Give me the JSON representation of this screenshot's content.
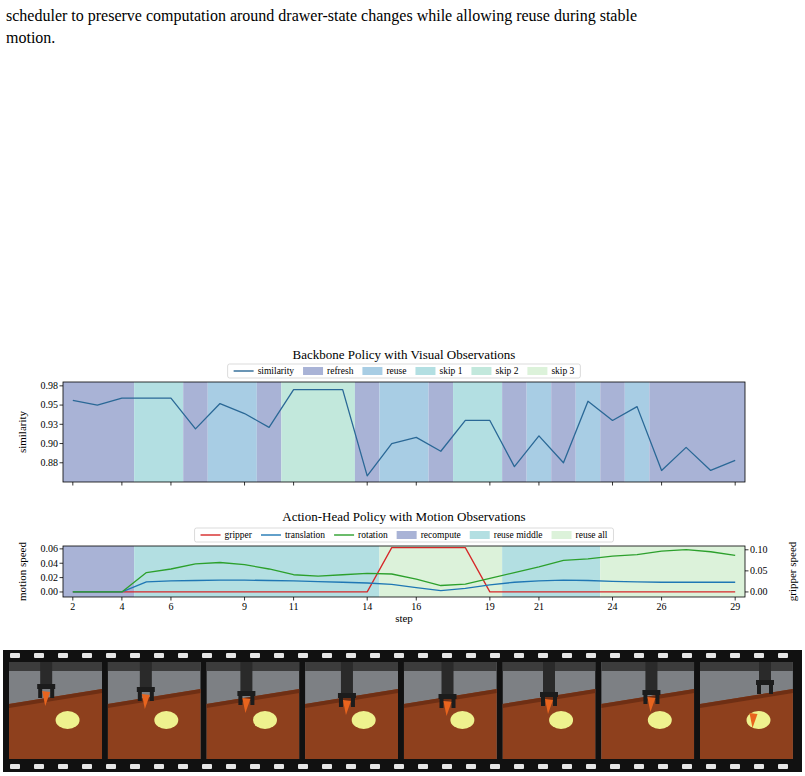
{
  "caption_lines": [
    "scheduler to preserve computation around drawer-state changes while allowing reuse during stable",
    "motion."
  ],
  "chart_data": [
    {
      "type": "line",
      "title": "Backbone Policy with Visual Observations",
      "ylabel": "similarity",
      "x": [
        2,
        3,
        4,
        5,
        6,
        7,
        8,
        9,
        10,
        11,
        12,
        13,
        14,
        15,
        16,
        17,
        18,
        19,
        20,
        21,
        22,
        23,
        24,
        25,
        26,
        27,
        28,
        29
      ],
      "series": [
        {
          "name": "similarity",
          "color": "#2a6896",
          "values": [
            0.956,
            0.95,
            0.959,
            0.959,
            0.959,
            0.919,
            0.952,
            0.939,
            0.921,
            0.97,
            0.97,
            0.97,
            0.858,
            0.9,
            0.908,
            0.89,
            0.93,
            0.93,
            0.87,
            0.91,
            0.875,
            0.955,
            0.93,
            0.948,
            0.865,
            0.895,
            0.865,
            0.878
          ]
        }
      ],
      "region_types": [
        {
          "name": "refresh",
          "color": "#a9b3d6"
        },
        {
          "name": "reuse",
          "color": "#a8cde4"
        },
        {
          "name": "skip 1",
          "color": "#b3dfe2"
        },
        {
          "name": "skip 2",
          "color": "#c2e8dc"
        },
        {
          "name": "skip 3",
          "color": "#dcf2da"
        }
      ],
      "regions": [
        {
          "label": "refresh",
          "start": 1.6,
          "end": 4.5
        },
        {
          "label": "skip 1",
          "start": 4.5,
          "end": 6.5
        },
        {
          "label": "refresh",
          "start": 6.5,
          "end": 7.5
        },
        {
          "label": "reuse",
          "start": 7.5,
          "end": 9.5
        },
        {
          "label": "refresh",
          "start": 9.5,
          "end": 10.5
        },
        {
          "label": "skip 2",
          "start": 10.5,
          "end": 13.5
        },
        {
          "label": "refresh",
          "start": 13.5,
          "end": 14.5
        },
        {
          "label": "reuse",
          "start": 14.5,
          "end": 16.5
        },
        {
          "label": "refresh",
          "start": 16.5,
          "end": 17.5
        },
        {
          "label": "skip 1",
          "start": 17.5,
          "end": 19.5
        },
        {
          "label": "refresh",
          "start": 19.5,
          "end": 20.5
        },
        {
          "label": "reuse",
          "start": 20.5,
          "end": 21.5
        },
        {
          "label": "refresh",
          "start": 21.5,
          "end": 22.5
        },
        {
          "label": "reuse",
          "start": 22.5,
          "end": 23.5
        },
        {
          "label": "refresh",
          "start": 23.5,
          "end": 24.5
        },
        {
          "label": "reuse",
          "start": 24.5,
          "end": 25.5
        },
        {
          "label": "refresh",
          "start": 25.5,
          "end": 29.4
        }
      ],
      "xlim": [
        1.6,
        29.4
      ],
      "xticks": [
        2,
        4,
        6,
        9,
        11,
        14,
        16,
        19,
        21,
        24,
        26,
        29
      ],
      "ylim": [
        0.85,
        0.98
      ],
      "yticks": [
        {
          "value": 0.875,
          "label": "0.88"
        },
        {
          "value": 0.9,
          "label": "0.90"
        },
        {
          "value": 0.925,
          "label": "0.93"
        },
        0.95,
        {
          "value": 0.975,
          "label": "0.98"
        }
      ],
      "tick_labels": "y",
      "grid": false,
      "legend": "top"
    },
    {
      "type": "line",
      "title": "Action-Head Policy with Motion Observations",
      "xlabel": "step",
      "ylabel": "motion speed",
      "y2label": "gripper speed",
      "x": [
        2,
        3,
        4,
        5,
        6,
        7,
        8,
        9,
        10,
        11,
        12,
        13,
        14,
        15,
        16,
        17,
        18,
        19,
        20,
        21,
        22,
        23,
        24,
        25,
        26,
        27,
        28,
        29
      ],
      "series": [
        {
          "name": "gripper",
          "color": "#d62728",
          "axis": "y2",
          "values": [
            0,
            0,
            0,
            0,
            0,
            0,
            0,
            0,
            0,
            0,
            0,
            0,
            0,
            0.105,
            0.105,
            0.105,
            0.105,
            0,
            0,
            0,
            0,
            0,
            0,
            0,
            0,
            0,
            0,
            0
          ]
        },
        {
          "name": "translation",
          "color": "#1f77b4",
          "values": [
            0,
            0,
            0,
            0.014,
            0.0155,
            0.016,
            0.0165,
            0.0165,
            0.016,
            0.0155,
            0.0145,
            0.0135,
            0.0125,
            0.0105,
            0.006,
            0.002,
            0.005,
            0.01,
            0.0135,
            0.0155,
            0.0165,
            0.016,
            0.0148,
            0.014,
            0.0135,
            0.0135,
            0.0135,
            0.0135
          ]
        },
        {
          "name": "rotation",
          "color": "#2ca02c",
          "values": [
            0,
            0,
            0,
            0.027,
            0.032,
            0.039,
            0.041,
            0.038,
            0.032,
            0.024,
            0.022,
            0.024,
            0.026,
            0.025,
            0.018,
            0.009,
            0.011,
            0.019,
            0.027,
            0.035,
            0.044,
            0.046,
            0.05,
            0.052,
            0.057,
            0.059,
            0.056,
            0.051
          ]
        }
      ],
      "region_types": [
        {
          "name": "recompute",
          "color": "#a9b3d6"
        },
        {
          "name": "reuse middle",
          "color": "#b3dfe2"
        },
        {
          "name": "reuse all",
          "color": "#dcf2da"
        }
      ],
      "regions": [
        {
          "label": "recompute",
          "start": 1.6,
          "end": 4.5
        },
        {
          "label": "reuse middle",
          "start": 4.5,
          "end": 14.5
        },
        {
          "label": "reuse all",
          "start": 14.5,
          "end": 19.5
        },
        {
          "label": "reuse middle",
          "start": 19.5,
          "end": 23.5
        },
        {
          "label": "reuse all",
          "start": 23.5,
          "end": 29.4
        }
      ],
      "xlim": [
        1.6,
        29.4
      ],
      "xticks": [
        2,
        4,
        6,
        9,
        11,
        14,
        16,
        19,
        21,
        24,
        26,
        29
      ],
      "ylim": [
        -0.007,
        0.064
      ],
      "yticks": [
        {
          "value": 0,
          "label": "0.00"
        },
        {
          "value": 0.02,
          "label": "0.02"
        },
        {
          "value": 0.04,
          "label": "0.04"
        },
        {
          "value": 0.06,
          "label": "0.06"
        }
      ],
      "y2lim": [
        -0.012,
        0.109
      ],
      "y2ticks": [
        {
          "value": 0,
          "label": "0.00"
        },
        {
          "value": 0.05,
          "label": "0.05"
        },
        {
          "value": 0.1,
          "label": "0.10"
        }
      ],
      "grid": false,
      "legend": "top"
    }
  ]
}
